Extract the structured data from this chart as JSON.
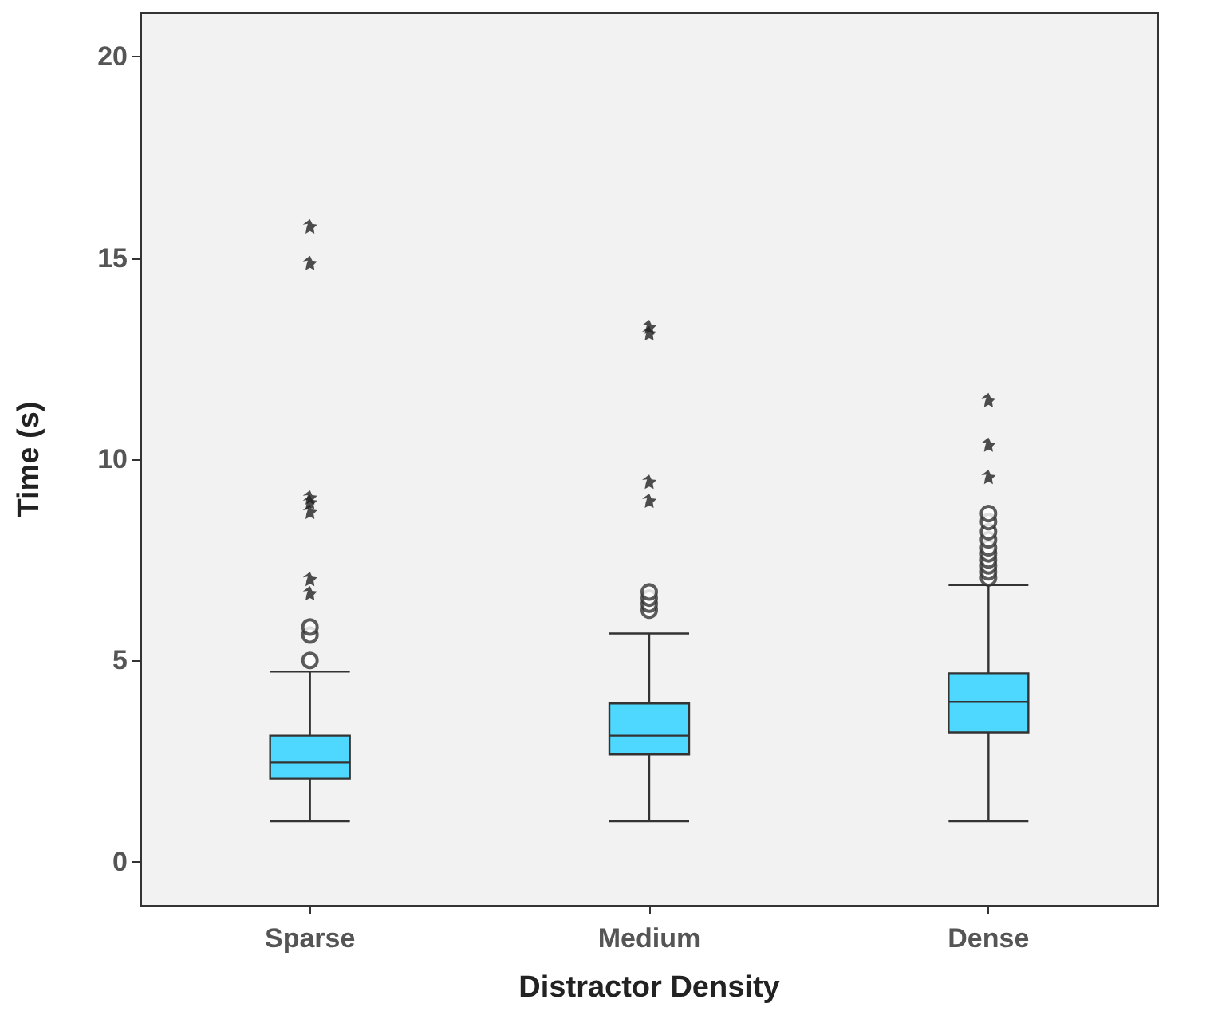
{
  "chart_data": {
    "type": "box",
    "xlabel": "Distractor Density",
    "ylabel": "Time (s)",
    "categories": [
      "Sparse",
      "Medium",
      "Dense"
    ],
    "ylim": [
      -1.1,
      21.1
    ],
    "yticks": [
      0,
      5,
      10,
      15,
      20
    ],
    "grid": false,
    "series": [
      {
        "color": "#4fd8ff",
        "boxes": [
          {
            "low": 1.0,
            "q1": 2.06,
            "median": 2.46,
            "q3": 3.13,
            "high": 4.72,
            "outliers": [
              5.0,
              5.63,
              5.83
            ]
          },
          {
            "low": 1.0,
            "q1": 2.66,
            "median": 3.13,
            "q3": 3.93,
            "high": 5.67,
            "outliers": [
              6.25,
              6.4,
              6.55,
              6.7
            ]
          },
          {
            "low": 1.0,
            "q1": 3.21,
            "median": 3.97,
            "q3": 4.68,
            "high": 6.87,
            "outliers": [
              7.05,
              7.2,
              7.35,
              7.5,
              7.65,
              7.8,
              8.0,
              8.2,
              8.45,
              8.65
            ]
          }
        ]
      },
      {
        "type": "scatter",
        "marker": "star",
        "color": "#222222",
        "x": [
          "Sparse",
          "Sparse",
          "Sparse",
          "Sparse",
          "Sparse",
          "Sparse",
          "Sparse",
          "Medium",
          "Medium",
          "Medium",
          "Medium",
          "Dense",
          "Dense",
          "Dense"
        ],
        "values": [
          6.67,
          7.02,
          8.69,
          8.93,
          9.05,
          14.88,
          15.79,
          8.97,
          9.44,
          13.13,
          13.29,
          9.56,
          10.36,
          11.47
        ]
      }
    ]
  }
}
